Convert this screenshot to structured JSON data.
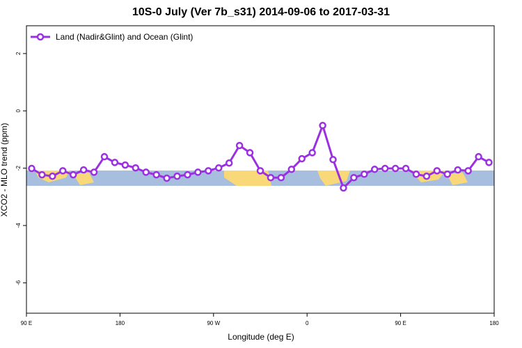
{
  "chart_data": {
    "type": "line",
    "title": "10S-0 July (Ver 7b_s31)   2014-09-06 to 2017-03-31",
    "xlabel": "Longitude (deg E)",
    "ylabel": "XCO2 - MLO trend (ppm)",
    "x": [
      95,
      105,
      115,
      125,
      135,
      145,
      155,
      165,
      175,
      185,
      195,
      205,
      215,
      225,
      235,
      245,
      255,
      265,
      275,
      285,
      295,
      305,
      315,
      325,
      335,
      345,
      355,
      365,
      375,
      385,
      395,
      405,
      415,
      425,
      435,
      445,
      455,
      465,
      475,
      485,
      495,
      505,
      515,
      525,
      535
    ],
    "series": [
      {
        "name": "Land (Nadir&Glint) and Ocean (Glint)",
        "color": "#9b30e0",
        "values": [
          -2.01,
          -2.23,
          -2.28,
          -2.09,
          -2.23,
          -2.06,
          -2.14,
          -1.6,
          -1.8,
          -1.89,
          -1.99,
          -2.14,
          -2.23,
          -2.35,
          -2.28,
          -2.23,
          -2.14,
          -2.09,
          -1.99,
          -1.82,
          -1.21,
          -1.46,
          -2.09,
          -2.33,
          -2.33,
          -2.04,
          -1.67,
          -1.46,
          -0.51,
          -1.7,
          -2.69,
          -2.33,
          -2.21,
          -2.04,
          -2.01,
          -2.01,
          -2.01,
          -2.21,
          -2.28,
          -2.09,
          -2.21,
          -2.06,
          -2.09,
          -1.6,
          -1.8
        ]
      }
    ],
    "xlim": [
      90,
      540
    ],
    "xticks": [
      {
        "value": 90,
        "label": "90 E"
      },
      180,
      {
        "value": 270,
        "label": "90 W"
      },
      {
        "value": 360,
        "label": "0"
      },
      {
        "value": 450,
        "label": "90 E"
      },
      {
        "value": 540,
        "label": "180"
      }
    ],
    "ylim": [
      -7.06,
      2.97
    ],
    "yticks": [
      2,
      0,
      -2,
      -4,
      -6
    ],
    "legend": "top-left"
  }
}
